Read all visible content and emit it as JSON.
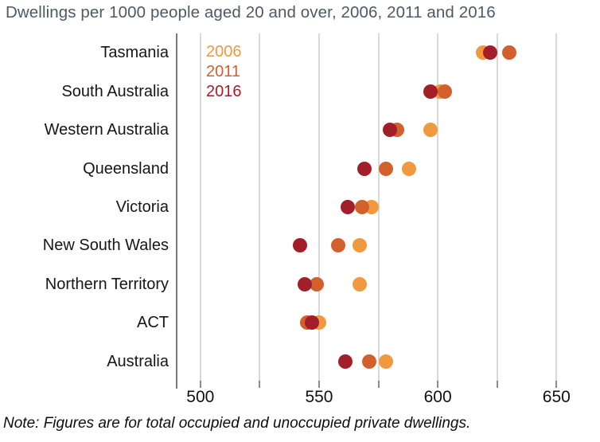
{
  "title": "Dwellings per 1000 people aged 20 and over, 2006, 2011 and 2016",
  "note": "Note: Figures are for total occupied and unoccupied private dwellings.",
  "colors": {
    "y2006": "#F0993F",
    "y2011": "#D2602D",
    "y2016": "#A21E29",
    "title_text": "#4D5A66",
    "axis_line": "#7A7A7A",
    "gridline": "#D9D9D9",
    "tick": "#8C8C8C",
    "label_text": "#161616"
  },
  "legend": {
    "position": "upper-left-inside-plot",
    "items": [
      {
        "label": "2006",
        "color": "#F0993F"
      },
      {
        "label": "2011",
        "color": "#D2602D"
      },
      {
        "label": "2016",
        "color": "#A21E29"
      }
    ]
  },
  "chart_data": {
    "type": "scatter",
    "variant": "horizontal-dot-plot",
    "title": "Dwellings per 1000 people aged 20 and over, 2006, 2011 and 2016",
    "xlabel": "",
    "ylabel": "",
    "categories": [
      "Tasmania",
      "South Australia",
      "Western Australia",
      "Queensland",
      "Victoria",
      "New South Wales",
      "Northern Territory",
      "ACT",
      "Australia"
    ],
    "series": [
      {
        "name": "2006",
        "color": "#F0993F",
        "values": [
          619,
          601,
          597,
          588,
          572,
          567,
          567,
          550,
          578
        ]
      },
      {
        "name": "2011",
        "color": "#D2602D",
        "values": [
          630,
          603,
          583,
          578,
          568,
          558,
          549,
          545,
          571
        ]
      },
      {
        "name": "2016",
        "color": "#A21E29",
        "values": [
          622,
          597,
          580,
          569,
          562,
          542,
          544,
          547,
          561
        ]
      }
    ],
    "xlim": [
      490,
      668
    ],
    "xticks": [
      500,
      550,
      600,
      650
    ],
    "gridlines": [
      500,
      525,
      550,
      575,
      600,
      625,
      650
    ],
    "grid": true,
    "legend_position": "upper left inside plot",
    "note": "Note: Figures are for total occupied and unoccupied private dwellings."
  }
}
